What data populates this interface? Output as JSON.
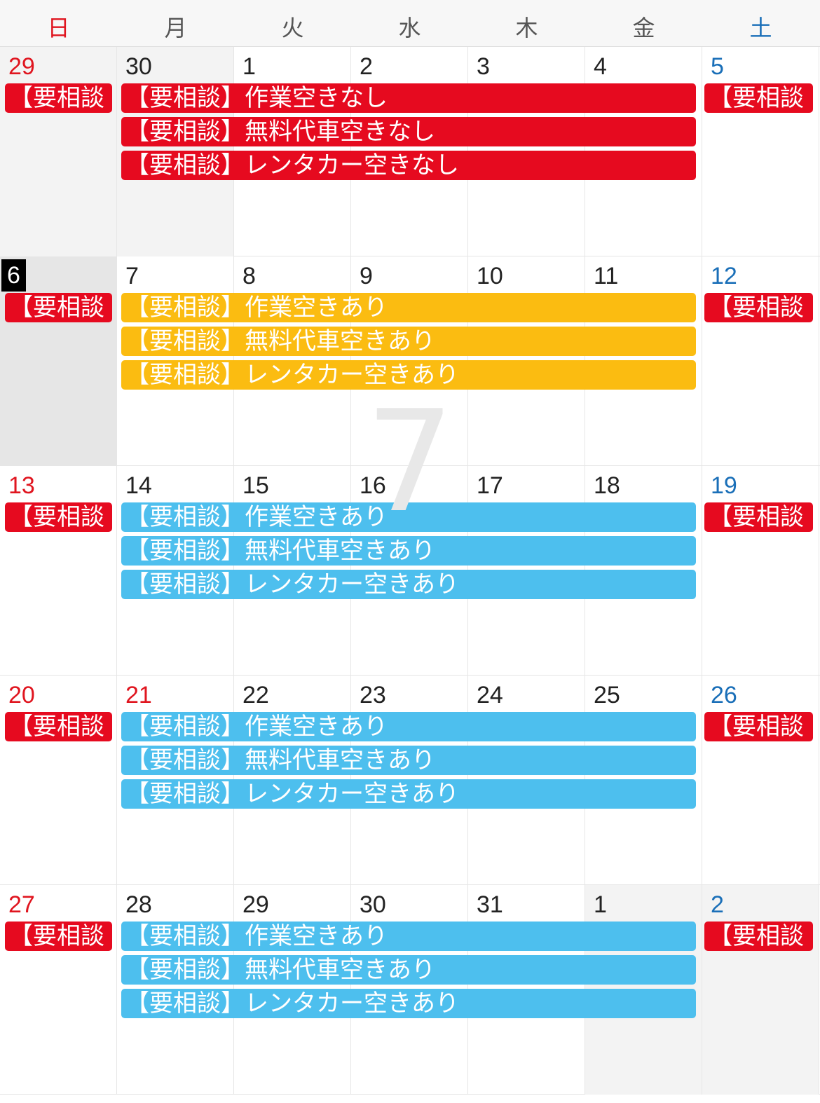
{
  "weekdays": [
    "日",
    "月",
    "火",
    "水",
    "木",
    "金",
    "土"
  ],
  "month_watermark": "7",
  "colors": {
    "red": "#e60a1f",
    "yellow": "#fbbc11",
    "blue": "#4dbfee",
    "sunday": "#e0151f",
    "saturday": "#1a6fb8"
  },
  "weeks": [
    {
      "days": [
        "29",
        "30",
        "1",
        "2",
        "3",
        "4",
        "5"
      ],
      "sunday_event": "【要相談",
      "saturday_event": "【要相談",
      "event_color": "red",
      "events": [
        "【要相談】作業空きなし",
        "【要相談】無料代車空きなし",
        "【要相談】レンタカー空きなし"
      ]
    },
    {
      "days": [
        "6",
        "7",
        "8",
        "9",
        "10",
        "11",
        "12"
      ],
      "sunday_event": "【要相談",
      "saturday_event": "【要相談",
      "event_color": "yellow",
      "events": [
        "【要相談】作業空きあり",
        "【要相談】無料代車空きあり",
        "【要相談】レンタカー空きあり"
      ]
    },
    {
      "days": [
        "13",
        "14",
        "15",
        "16",
        "17",
        "18",
        "19"
      ],
      "sunday_event": "【要相談",
      "saturday_event": "【要相談",
      "event_color": "blue",
      "events": [
        "【要相談】作業空きあり",
        "【要相談】無料代車空きあり",
        "【要相談】レンタカー空きあり"
      ]
    },
    {
      "days": [
        "20",
        "21",
        "22",
        "23",
        "24",
        "25",
        "26"
      ],
      "sunday_event": "【要相談",
      "saturday_event": "【要相談",
      "event_color": "blue",
      "events": [
        "【要相談】作業空きあり",
        "【要相談】無料代車空きあり",
        "【要相談】レンタカー空きあり"
      ]
    },
    {
      "days": [
        "27",
        "28",
        "29",
        "30",
        "31",
        "1",
        "2"
      ],
      "sunday_event": "【要相談",
      "saturday_event": "【要相談",
      "event_color": "blue",
      "events": [
        "【要相談】作業空きあり",
        "【要相談】無料代車空きあり",
        "【要相談】レンタカー空きあり"
      ]
    }
  ]
}
